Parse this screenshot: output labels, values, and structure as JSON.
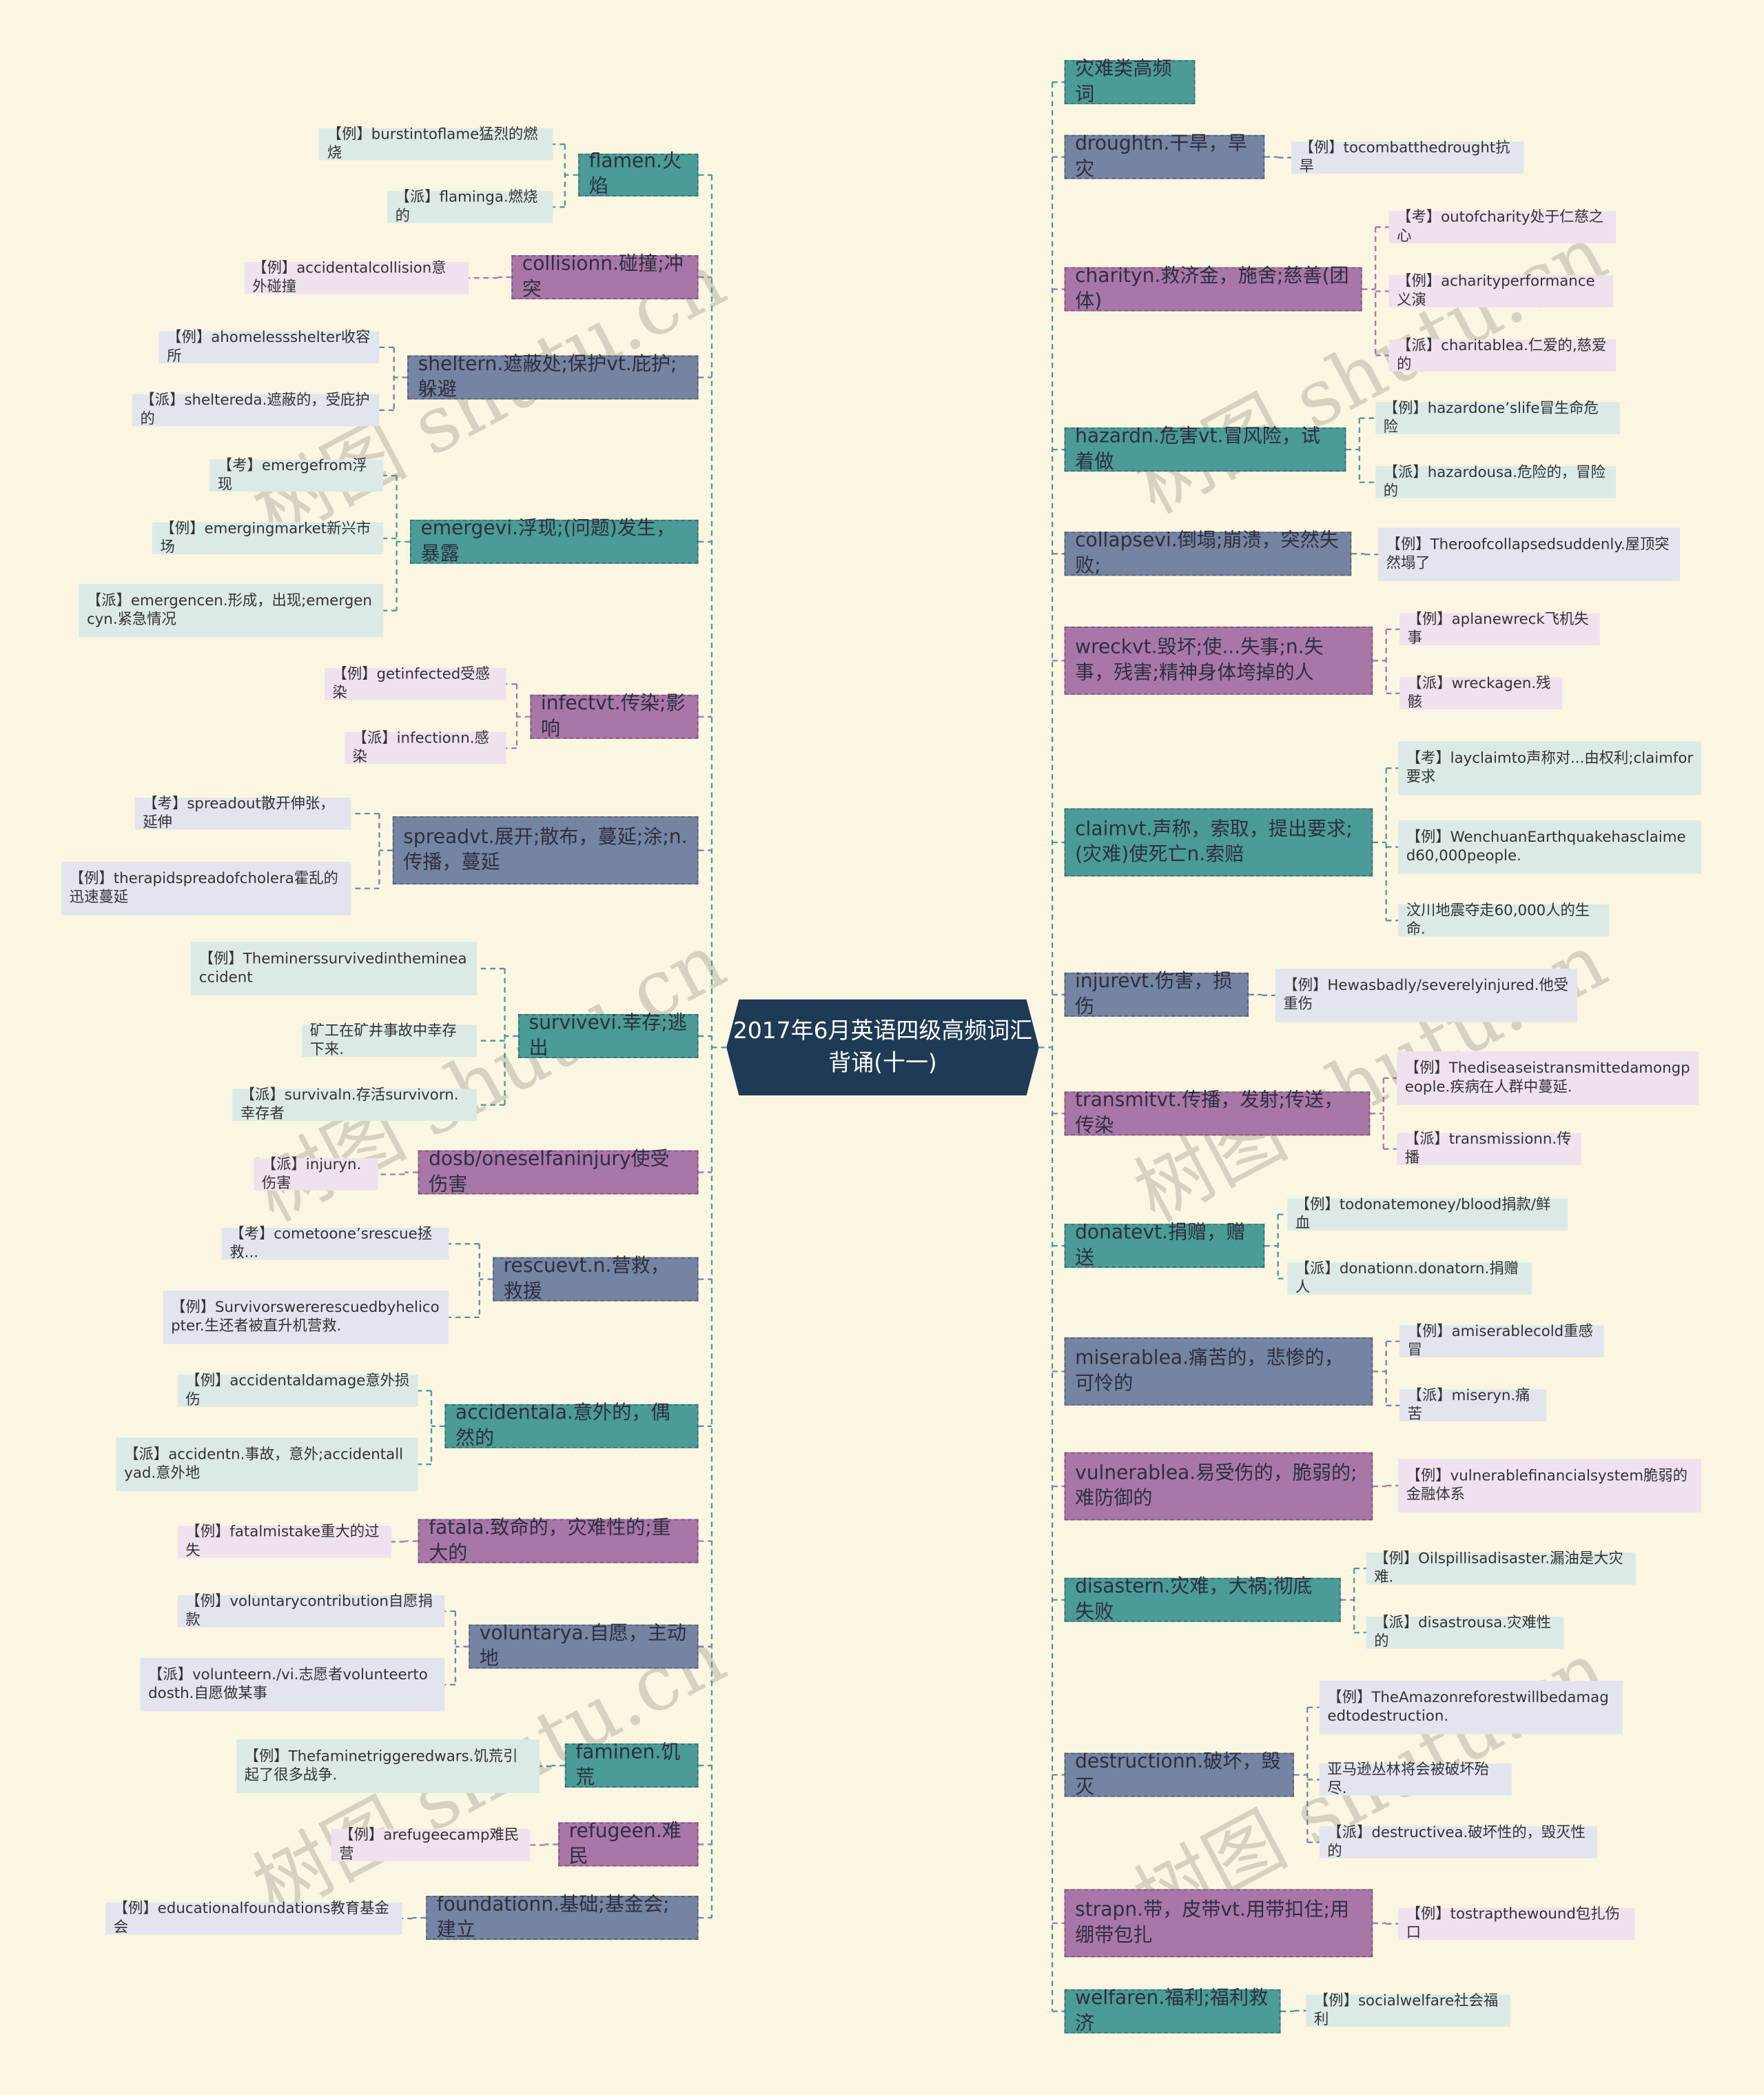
{
  "center": {
    "title": "2017年6月英语四级高频词汇背诵(十一)"
  },
  "palette": {
    "teal": {
      "main": "#4b9b98",
      "leaf": "#dbeae7",
      "line": "#4b9b98"
    },
    "purple": {
      "main": "#a877a8",
      "leaf": "#efe2ee",
      "line": "#a877a8"
    },
    "slate": {
      "main": "#7584a3",
      "leaf": "#e2e5ee",
      "line": "#7584a3"
    },
    "center": "#1e3a55",
    "background": "#fbf6e1"
  },
  "watermark": "树图 shutu.cn",
  "left": [
    {
      "label": "flamen.火焰",
      "color": "teal",
      "children": [
        "【例】burstintoflame猛烈的燃烧",
        "【派】flaminga.燃烧的"
      ]
    },
    {
      "label": "collisionn.碰撞;冲突",
      "color": "purple",
      "children": [
        "【例】accidentalcollision意外碰撞"
      ]
    },
    {
      "label": "sheltern.遮蔽处;保护vt.庇护;躲避",
      "color": "slate",
      "children": [
        "【例】ahomelessshelter收容所",
        "【派】sheltereda.遮蔽的，受庇护的"
      ]
    },
    {
      "label": "emergevi.浮现;(问题)发生，暴露",
      "color": "teal",
      "children": [
        "【考】emergefrom浮现",
        "【例】emergingmarket新兴市场",
        "【派】emergencen.形成，出现;emergencyn.紧急情况"
      ]
    },
    {
      "label": "infectvt.传染;影响",
      "color": "purple",
      "children": [
        "【例】getinfected受感染",
        "【派】infectionn.感染"
      ]
    },
    {
      "label": "spreadvt.展开;散布，蔓延;涂;n.传播，蔓延",
      "color": "slate",
      "children": [
        "【考】spreadout散开伸张，延伸",
        "【例】therapidspreadofcholera霍乱的迅速蔓延"
      ]
    },
    {
      "label": "survivevi.幸存;逃出",
      "color": "teal",
      "children": [
        "【例】Theminerssurvivedinthemineaccident",
        "矿工在矿井事故中幸存下来.",
        "【派】survivaln.存活survivorn.幸存者"
      ]
    },
    {
      "label": "dosb/oneselfaninjury使受伤害",
      "color": "purple",
      "children": [
        "【派】injuryn.伤害"
      ]
    },
    {
      "label": "rescuevt.n.营救，救援",
      "color": "slate",
      "children": [
        "【考】cometoone’srescue拯救...",
        "【例】Survivorswererescuedbyhelicopter.生还者被直升机营救."
      ]
    },
    {
      "label": "accidentala.意外的，偶然的",
      "color": "teal",
      "children": [
        "【例】accidentaldamage意外损伤",
        "【派】accidentn.事故，意外;accidentallyad.意外地"
      ]
    },
    {
      "label": "fatala.致命的，灾难性的;重大的",
      "color": "purple",
      "children": [
        "【例】fatalmistake重大的过失"
      ]
    },
    {
      "label": "voluntarya.自愿，主动地",
      "color": "slate",
      "children": [
        "【例】voluntarycontribution自愿捐款",
        "【派】volunteern./vi.志愿者volunteertodosth.自愿做某事"
      ]
    },
    {
      "label": "faminen.饥荒",
      "color": "teal",
      "children": [
        "【例】Thefaminetriggeredwars.饥荒引起了很多战争."
      ]
    },
    {
      "label": "refugeen.难民",
      "color": "purple",
      "children": [
        "【例】arefugeecamp难民营"
      ]
    },
    {
      "label": "foundationn.基础;基金会;建立",
      "color": "slate",
      "children": [
        "【例】educationalfoundations教育基金会"
      ]
    }
  ],
  "right": [
    {
      "label": "灾难类高频词",
      "color": "teal",
      "children": []
    },
    {
      "label": "droughtn.干旱，旱灾",
      "color": "slate",
      "children": [
        "【例】tocombatthedrought抗旱"
      ]
    },
    {
      "label": "charityn.救济金，施舍;慈善(团体)",
      "color": "purple",
      "children": [
        "【考】outofcharity处于仁慈之心",
        "【例】acharityperformance义演",
        "【派】charitablea.仁爱的,慈爱的"
      ]
    },
    {
      "label": "hazardn.危害vt.冒风险，试着做",
      "color": "teal",
      "children": [
        "【例】hazardone’slife冒生命危险",
        "【派】hazardousa.危险的，冒险的"
      ]
    },
    {
      "label": "collapsevi.倒塌;崩溃，突然失败;",
      "color": "slate",
      "children": [
        "【例】Theroofcollapsedsuddenly.屋顶突然塌了"
      ]
    },
    {
      "label": "wreckvt.毁坏;使...失事;n.失事，残害;精神身体垮掉的人",
      "color": "purple",
      "children": [
        "【例】aplanewreck飞机失事",
        "【派】wreckagen.残骸"
      ]
    },
    {
      "label": "claimvt.声称，索取，提出要求;(灾难)使死亡n.索赔",
      "color": "teal",
      "children": [
        "【考】layclaimto声称对...由权利;claimfor要求",
        "【例】WenchuanEarthquakehasclaimed60,000people.",
        "汶川地震夺走60,000人的生命."
      ]
    },
    {
      "label": "injurevt.伤害，损伤",
      "color": "slate",
      "children": [
        "【例】Hewasbadly/severelyinjured.他受重伤"
      ]
    },
    {
      "label": "transmitvt.传播，发射;传送，传染",
      "color": "purple",
      "children": [
        "【例】Thediseaseistransmittedamongpeople.疾病在人群中蔓延.",
        "【派】transmissionn.传播"
      ]
    },
    {
      "label": "donatevt.捐赠，赠送",
      "color": "teal",
      "children": [
        "【例】todonatemoney/blood捐款/鲜血",
        "【派】donationn.donatorn.捐赠人"
      ]
    },
    {
      "label": "miserablea.痛苦的，悲惨的，可怜的",
      "color": "slate",
      "children": [
        "【例】amiserablecold重感冒",
        "【派】miseryn.痛苦"
      ]
    },
    {
      "label": "vulnerablea.易受伤的，脆弱的;难防御的",
      "color": "purple",
      "children": [
        "【例】vulnerablefinancialsystem脆弱的金融体系"
      ]
    },
    {
      "label": "disastern.灾难，大祸;彻底失败",
      "color": "teal",
      "children": [
        "【例】Oilspillisadisaster.漏油是大灾难.",
        "【派】disastrousa.灾难性的"
      ]
    },
    {
      "label": "destructionn.破坏，毁灭",
      "color": "slate",
      "children": [
        "【例】TheAmazonreforestwillbedamagedtodestruction.",
        "亚马逊丛林将会被破坏殆尽.",
        "【派】destructivea.破坏性的，毁灭性的"
      ]
    },
    {
      "label": "strapn.带，皮带vt.用带扣住;用绷带包扎",
      "color": "purple",
      "children": [
        "【例】tostrapthewound包扎伤口"
      ]
    },
    {
      "label": "welfaren.福利;福利救济",
      "color": "teal",
      "children": [
        "【例】socialwelfare社会福利"
      ]
    }
  ]
}
